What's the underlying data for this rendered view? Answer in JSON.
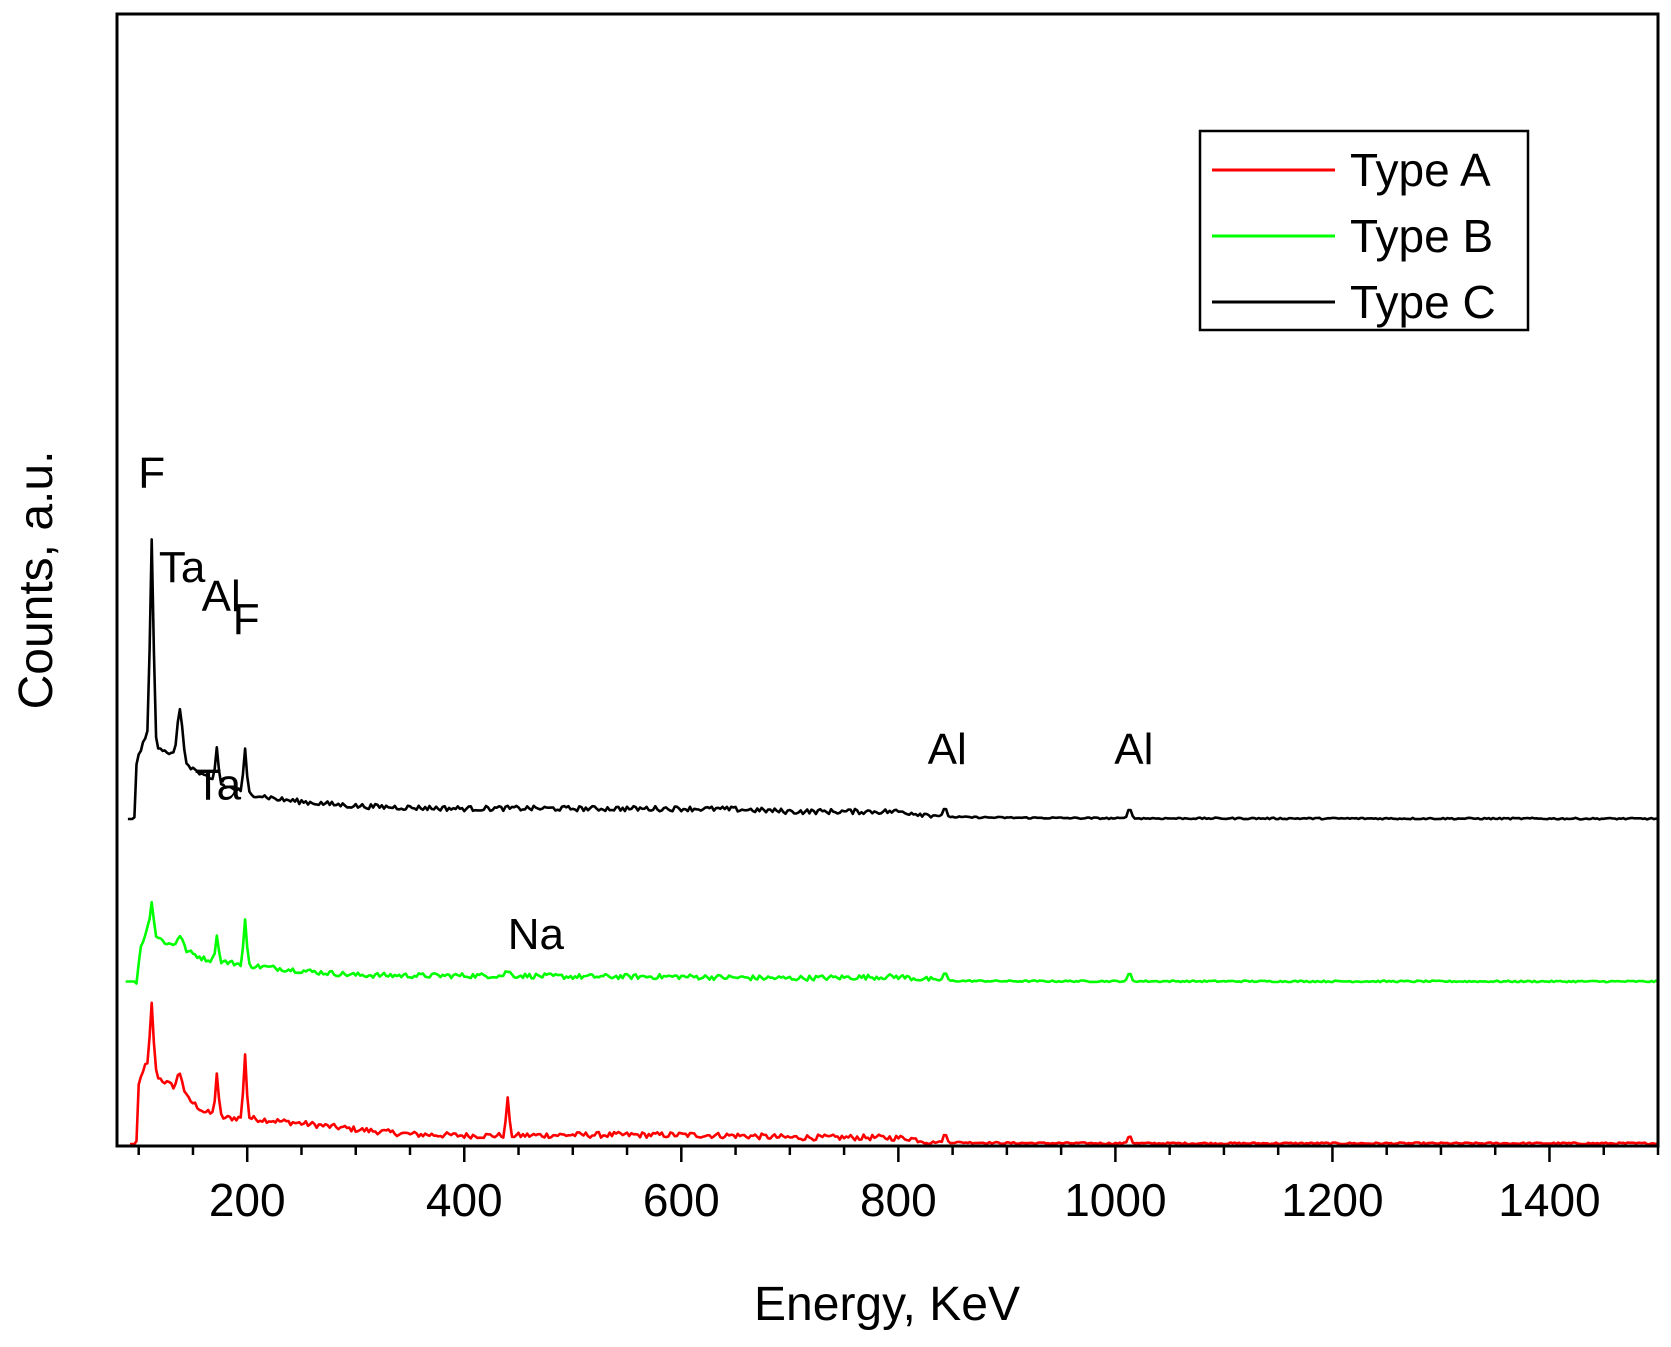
{
  "chart_data": {
    "type": "line",
    "title": "",
    "xlabel": "Energy, KeV",
    "ylabel": "Counts, a.u.",
    "xlim": [
      80,
      1500
    ],
    "ylim": [
      0,
      100
    ],
    "y_ticks_labeled": false,
    "x_ticks": [
      200,
      400,
      600,
      800,
      1000,
      1200,
      1400
    ],
    "x_tick_labels": [
      "200",
      "400",
      "600",
      "800",
      "1000",
      "1200",
      "1400"
    ],
    "legend": {
      "placement": "top-right",
      "entries": [
        "Type A",
        "Type B",
        "Type C"
      ]
    },
    "series": [
      {
        "name": "Type A",
        "color": "#ff0000",
        "baseline": 0,
        "background": [
          [
            92,
            0
          ],
          [
            98,
            0
          ],
          [
            100,
            18
          ],
          [
            105,
            24
          ],
          [
            112,
            23
          ],
          [
            120,
            20
          ],
          [
            130,
            18
          ],
          [
            145,
            14
          ],
          [
            160,
            10
          ],
          [
            180,
            8
          ],
          [
            200,
            8
          ],
          [
            230,
            7
          ],
          [
            260,
            6
          ],
          [
            300,
            4.5
          ],
          [
            350,
            3
          ],
          [
            400,
            2.6
          ],
          [
            450,
            2.6
          ],
          [
            500,
            2.8
          ],
          [
            600,
            2.8
          ],
          [
            650,
            2.6
          ],
          [
            700,
            2.0
          ],
          [
            780,
            2.0
          ],
          [
            810,
            1.8
          ],
          [
            830,
            0.6
          ],
          [
            900,
            0.3
          ],
          [
            1000,
            0.2
          ],
          [
            1500,
            0.2
          ]
        ],
        "peaks": [
          {
            "x": 112,
            "height": 20,
            "width": 1.6
          },
          {
            "x": 138,
            "height": 6,
            "width": 2.5
          },
          {
            "x": 172,
            "height": 13,
            "width": 1.4
          },
          {
            "x": 198,
            "height": 20,
            "width": 1.4
          },
          {
            "x": 440,
            "height": 12,
            "width": 1.3
          },
          {
            "x": 843,
            "height": 2.6,
            "width": 1.5
          },
          {
            "x": 1013,
            "height": 2.6,
            "width": 1.5
          }
        ],
        "noise": 0.9
      },
      {
        "name": "Type B",
        "color": "#00ff00",
        "baseline": 50,
        "background": [
          [
            88,
            50
          ],
          [
            98,
            50
          ],
          [
            102,
            61
          ],
          [
            108,
            66
          ],
          [
            115,
            64
          ],
          [
            125,
            62
          ],
          [
            140,
            60
          ],
          [
            160,
            57
          ],
          [
            180,
            56
          ],
          [
            200,
            55
          ],
          [
            230,
            54
          ],
          [
            260,
            53
          ],
          [
            300,
            52
          ],
          [
            350,
            51.8
          ],
          [
            400,
            51.8
          ],
          [
            450,
            51.8
          ],
          [
            500,
            51.5
          ],
          [
            600,
            51.5
          ],
          [
            650,
            51.2
          ],
          [
            700,
            51.0
          ],
          [
            800,
            51.5
          ],
          [
            820,
            50.8
          ],
          [
            850,
            50.2
          ],
          [
            900,
            50.1
          ],
          [
            1500,
            50.0
          ]
        ],
        "peaks": [
          {
            "x": 112,
            "height": 10,
            "width": 1.6
          },
          {
            "x": 138,
            "height": 4,
            "width": 2.5
          },
          {
            "x": 172,
            "height": 8,
            "width": 1.4
          },
          {
            "x": 198,
            "height": 14,
            "width": 1.4
          },
          {
            "x": 440,
            "height": 1.5,
            "width": 2.0
          },
          {
            "x": 843,
            "height": 2.6,
            "width": 1.5
          },
          {
            "x": 1013,
            "height": 2.6,
            "width": 1.5
          }
        ],
        "noise": 0.8
      },
      {
        "name": "Type C",
        "color": "#000000",
        "baseline": 100,
        "background": [
          [
            90,
            100
          ],
          [
            96,
            100
          ],
          [
            98,
            117
          ],
          [
            104,
            124
          ],
          [
            110,
            124
          ],
          [
            120,
            122
          ],
          [
            130,
            120
          ],
          [
            140,
            118
          ],
          [
            160,
            113
          ],
          [
            180,
            110
          ],
          [
            200,
            108
          ],
          [
            230,
            106
          ],
          [
            260,
            105
          ],
          [
            300,
            104
          ],
          [
            350,
            103.5
          ],
          [
            400,
            103.2
          ],
          [
            450,
            103.3
          ],
          [
            500,
            103.2
          ],
          [
            600,
            103.2
          ],
          [
            650,
            103.0
          ],
          [
            700,
            102.3
          ],
          [
            800,
            102.3
          ],
          [
            820,
            101.6
          ],
          [
            850,
            100.6
          ],
          [
            900,
            100.4
          ],
          [
            1000,
            100.2
          ],
          [
            1500,
            100.1
          ]
        ],
        "peaks": [
          {
            "x": 112,
            "height": 62,
            "width": 1.6
          },
          {
            "x": 138,
            "height": 16,
            "width": 2.2
          },
          {
            "x": 172,
            "height": 11,
            "width": 1.4
          },
          {
            "x": 198,
            "height": 13,
            "width": 1.4
          },
          {
            "x": 843,
            "height": 2.5,
            "width": 1.5
          },
          {
            "x": 1013,
            "height": 3.5,
            "width": 1.5
          }
        ],
        "noise": 0.8
      }
    ],
    "annotations": [
      {
        "text": "F",
        "x": 112,
        "y": 202
      },
      {
        "text": "Ta",
        "x": 140,
        "y": 173
      },
      {
        "text": "Al",
        "x": 176,
        "y": 164
      },
      {
        "text": "F",
        "x": 199,
        "y": 157
      },
      {
        "text": "Al",
        "x": 845,
        "y": 117
      },
      {
        "text": "Al",
        "x": 1017,
        "y": 117
      },
      {
        "text": "Ta",
        "x": 173,
        "y": 106
      },
      {
        "text": "Na",
        "x": 466,
        "y": 60
      }
    ]
  }
}
